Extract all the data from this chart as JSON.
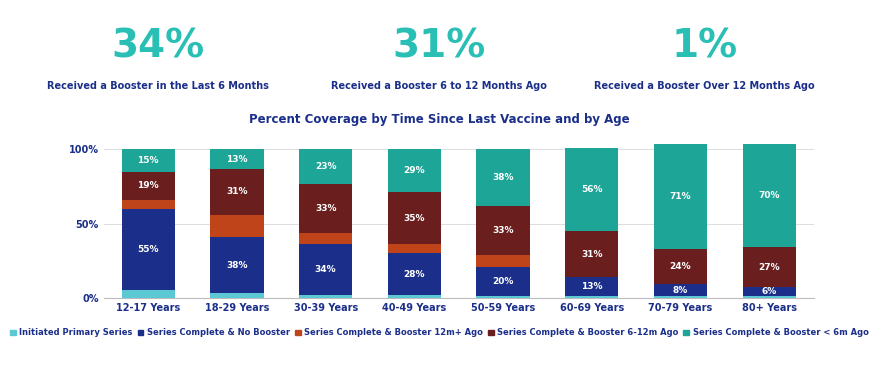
{
  "header_stats": [
    {
      "value": "34%",
      "label": "Received a Booster in the Last 6 Months"
    },
    {
      "value": "31%",
      "label": "Received a Booster 6 to 12 Months Ago"
    },
    {
      "value": "1%",
      "label": "Received a Booster Over 12 Months Ago"
    }
  ],
  "chart_title": "Percent Coverage by Time Since Last Vaccine and by Age",
  "age_groups": [
    "12-17 Years",
    "18-29 Years",
    "30-39 Years",
    "40-49 Years",
    "50-59 Years",
    "60-69 Years",
    "70-79 Years",
    "80+ Years"
  ],
  "series_names": [
    "Initiated Primary Series",
    "Series Complete & No Booster",
    "Series Complete & Booster 12m+ Ago",
    "Series Complete & Booster 6-12m Ago",
    "Series Complete & Booster < 6m Ago"
  ],
  "series_values": [
    [
      5,
      3,
      2,
      2,
      1,
      1,
      1,
      1
    ],
    [
      55,
      38,
      34,
      28,
      20,
      13,
      8,
      6
    ],
    [
      6,
      15,
      8,
      6,
      8,
      0,
      0,
      0
    ],
    [
      19,
      31,
      33,
      35,
      33,
      31,
      24,
      27
    ],
    [
      15,
      13,
      23,
      29,
      38,
      56,
      71,
      70
    ]
  ],
  "bar_labels": [
    [
      null,
      null,
      null,
      null,
      null,
      null,
      null,
      null
    ],
    [
      "55%",
      "38%",
      "34%",
      "28%",
      "20%",
      "13%",
      "8%",
      "6%"
    ],
    [
      null,
      null,
      null,
      null,
      null,
      null,
      null,
      null
    ],
    [
      "19%",
      "31%",
      "33%",
      "35%",
      "33%",
      "31%",
      "24%",
      "27%"
    ],
    [
      "15%",
      "13%",
      "23%",
      "29%",
      "38%",
      "56%",
      "71%",
      "70%"
    ]
  ],
  "colors": [
    "#5bc8d4",
    "#1b2f8a",
    "#c0441a",
    "#6b1e1e",
    "#1da598"
  ],
  "background_color": "#ffffff",
  "header_value_color": "#2abfb5",
  "header_label_color": "#1b2f8a",
  "title_color": "#1b2f8a",
  "legend_color": "#1b2f8a",
  "yticks": [
    0,
    50,
    100
  ],
  "ytick_labels": [
    "0%",
    "50%",
    "100%"
  ],
  "header_value_fontsize": 28,
  "header_label_fontsize": 7,
  "title_fontsize": 8.5,
  "bar_label_fontsize": 6.5,
  "tick_fontsize": 7,
  "legend_fontsize": 6,
  "bar_width": 0.6
}
